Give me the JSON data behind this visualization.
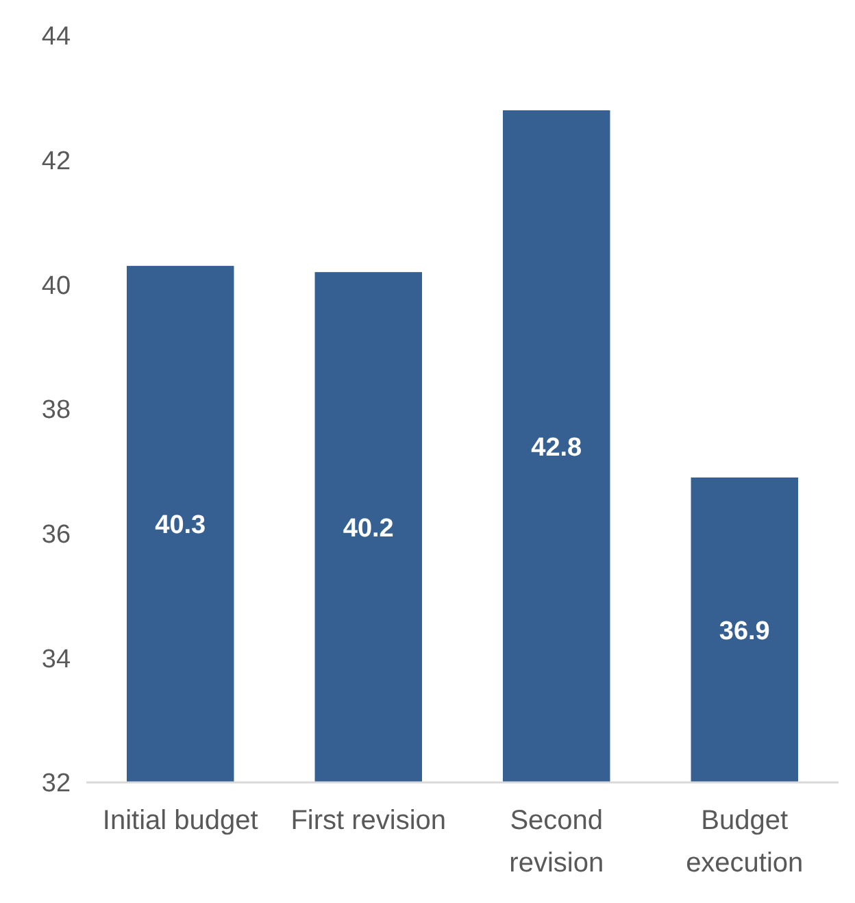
{
  "chart_data": {
    "type": "bar",
    "categories": [
      "Initial budget",
      "First revision",
      "Second revision",
      "Budget execution"
    ],
    "values": [
      40.3,
      40.2,
      42.8,
      36.9
    ],
    "color": "#366092",
    "ylim": [
      32,
      44
    ],
    "yticks": [
      32,
      34,
      36,
      38,
      40,
      42,
      44
    ],
    "grid": false,
    "data_labels": true
  }
}
